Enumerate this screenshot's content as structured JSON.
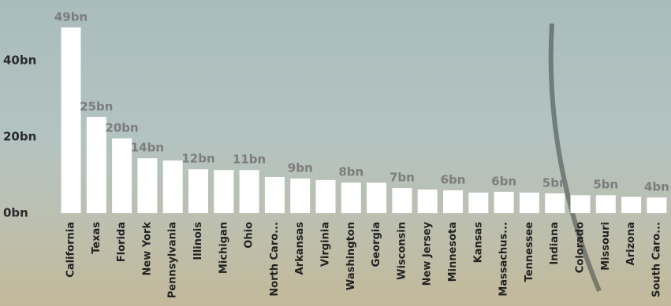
{
  "chart_data": {
    "type": "bar",
    "categories": [
      "California",
      "Texas",
      "Florida",
      "New York",
      "Pennsylvania",
      "Illinois",
      "Michigan",
      "Ohio",
      "North Caro...",
      "Arkansas",
      "Virginia",
      "Washington",
      "Georgia",
      "Wisconsin",
      "New Jersey",
      "Minnesota",
      "Kansas",
      "Massachus...",
      "Tennessee",
      "Indiana",
      "Colorado",
      "Missouri",
      "Arizona",
      "South Caro..."
    ],
    "values": [
      48.7,
      25.2,
      19.6,
      14.4,
      13.8,
      11.5,
      11.3,
      11.3,
      9.5,
      9.1,
      8.7,
      8.0,
      8.0,
      6.6,
      6.2,
      6.0,
      5.4,
      5.6,
      5.4,
      5.2,
      4.7,
      4.7,
      4.3,
      4.1
    ],
    "value_labels": [
      "49bn",
      "25bn",
      "20bn",
      "14bn",
      null,
      "12bn",
      null,
      "11bn",
      null,
      "9bn",
      null,
      "8bn",
      null,
      "7bn",
      null,
      "6bn",
      null,
      "6bn",
      null,
      "5bn",
      null,
      "5bn",
      null,
      "4bn"
    ],
    "color": "#ffffff",
    "ylim": [
      0,
      50
    ],
    "yticks": [
      {
        "value": 0,
        "label": "0bn"
      },
      {
        "value": 20,
        "label": "20bn"
      },
      {
        "value": 40,
        "label": "40bn"
      }
    ],
    "grid": false
  }
}
